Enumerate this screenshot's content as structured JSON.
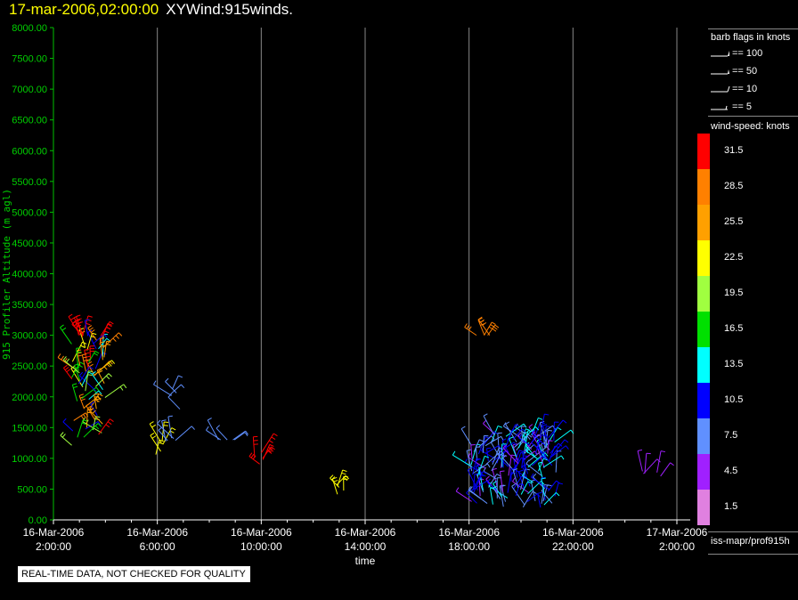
{
  "header": {
    "datetime": "17-mar-2006,02:00:00",
    "product": "XYWind:915winds."
  },
  "legend": {
    "barb_title": "barb flags in knots",
    "barb_items": [
      "== 100",
      "== 50",
      "== 10",
      "== 5"
    ],
    "speed_title": "wind-speed: knots",
    "speed_bins": [
      {
        "label": "31.5",
        "color": "#ff0000"
      },
      {
        "label": "28.5",
        "color": "#ff8000"
      },
      {
        "label": "25.5",
        "color": "#ffa000"
      },
      {
        "label": "22.5",
        "color": "#ffff00"
      },
      {
        "label": "19.5",
        "color": "#a0ff40"
      },
      {
        "label": "16.5",
        "color": "#00e000"
      },
      {
        "label": "13.5",
        "color": "#00ffff"
      },
      {
        "label": "10.5",
        "color": "#0000ff"
      },
      {
        "label": "7.5",
        "color": "#6090ff"
      },
      {
        "label": "4.5",
        "color": "#a020ff"
      },
      {
        "label": "1.5",
        "color": "#e080e0"
      }
    ],
    "source": "iss-mapr/prof915h"
  },
  "notice": "REAL-TIME DATA, NOT CHECKED FOR QUALITY",
  "chart_data": {
    "type": "scatter",
    "xlabel": "time",
    "ylabel": "915 Profiler Altitude (m agl)",
    "ylim": [
      0,
      8000
    ],
    "yticks": [
      "0.00",
      "500.00",
      "1000.00",
      "1500.00",
      "2000.00",
      "2500.00",
      "3000.00",
      "3500.00",
      "4000.00",
      "4500.00",
      "5000.00",
      "5500.00",
      "6000.00",
      "6500.00",
      "7000.00",
      "7500.00",
      "8000.00"
    ],
    "xlim_hours": [
      0,
      24
    ],
    "xticks": [
      {
        "hour": 0,
        "date": "16-Mar-2006",
        "time": "2:00:00"
      },
      {
        "hour": 4,
        "date": "16-Mar-2006",
        "time": "6:00:00"
      },
      {
        "hour": 8,
        "date": "16-Mar-2006",
        "time": "10:00:00"
      },
      {
        "hour": 12,
        "date": "16-Mar-2006",
        "time": "14:00:00"
      },
      {
        "hour": 16,
        "date": "16-Mar-2006",
        "time": "18:00:00"
      },
      {
        "hour": 20,
        "date": "16-Mar-2006",
        "time": "22:00:00"
      },
      {
        "hour": 24,
        "date": "17-Mar-2006",
        "time": "2:00:00"
      }
    ],
    "grid": "vertical",
    "clusters": [
      {
        "hour_range": [
          0.7,
          2.0
        ],
        "alt_range": [
          1200,
          3000
        ],
        "speed": [
          10,
          32
        ],
        "count": 60
      },
      {
        "hour_range": [
          0.8,
          1.2
        ],
        "alt": 3000,
        "speed": 31
      },
      {
        "hour_range": [
          4.5,
          4.9
        ],
        "alt_range": [
          1800,
          2150
        ],
        "speed": 8
      },
      {
        "hour_range": [
          3.9,
          4.3
        ],
        "alt_range": [
          1050,
          1300
        ],
        "speed": 22
      },
      {
        "hour_range": [
          4.3,
          4.8
        ],
        "alt_range": [
          1000,
          1400
        ],
        "speed": 6
      },
      {
        "hour_range": [
          6.3,
          7.0
        ],
        "alt": 1300,
        "speed": 8
      },
      {
        "hour_range": [
          7.7,
          8.2
        ],
        "alt_range": [
          850,
          1100
        ],
        "speed": 31
      },
      {
        "hour_range": [
          10.9,
          11.4
        ],
        "alt_range": [
          400,
          600
        ],
        "speed": 21
      },
      {
        "hour_range": [
          15.9,
          16.8
        ],
        "alt": 3000,
        "speed": 28
      },
      {
        "hour_range": [
          16.0,
          19.4
        ],
        "alt_range": [
          200,
          1400
        ],
        "speed": [
          5,
          14
        ],
        "count": 160
      },
      {
        "hour_range": [
          22.6,
          23.4
        ],
        "alt_range": [
          700,
          800
        ],
        "speed": 5
      }
    ]
  }
}
